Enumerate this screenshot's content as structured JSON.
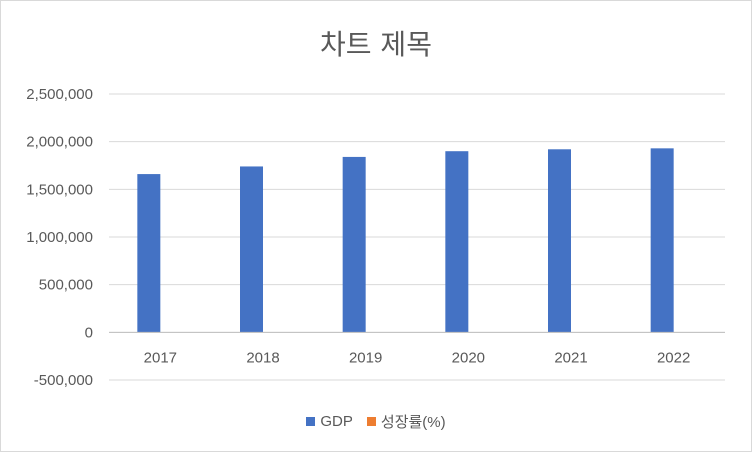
{
  "chart_data": {
    "type": "bar",
    "title": "차트 제목",
    "categories": [
      "2017",
      "2018",
      "2019",
      "2020",
      "2021",
      "2022"
    ],
    "series": [
      {
        "name": "GDP",
        "color": "#4472c4",
        "values": [
          1660000,
          1740000,
          1840000,
          1900000,
          1920000,
          1930000
        ]
      },
      {
        "name": "성장률(%)",
        "color": "#ed7d31",
        "values": [
          0,
          0,
          0,
          0,
          0,
          0
        ]
      }
    ],
    "ylim": [
      -500000,
      2500000
    ],
    "yticks": [
      "2,500,000",
      "2,000,000",
      "1,500,000",
      "1,000,000",
      "500,000",
      "0",
      "-500,000"
    ],
    "ytick_values": [
      2500000,
      2000000,
      1500000,
      1000000,
      500000,
      0,
      -500000
    ],
    "grid": true,
    "legend": "bottom"
  }
}
